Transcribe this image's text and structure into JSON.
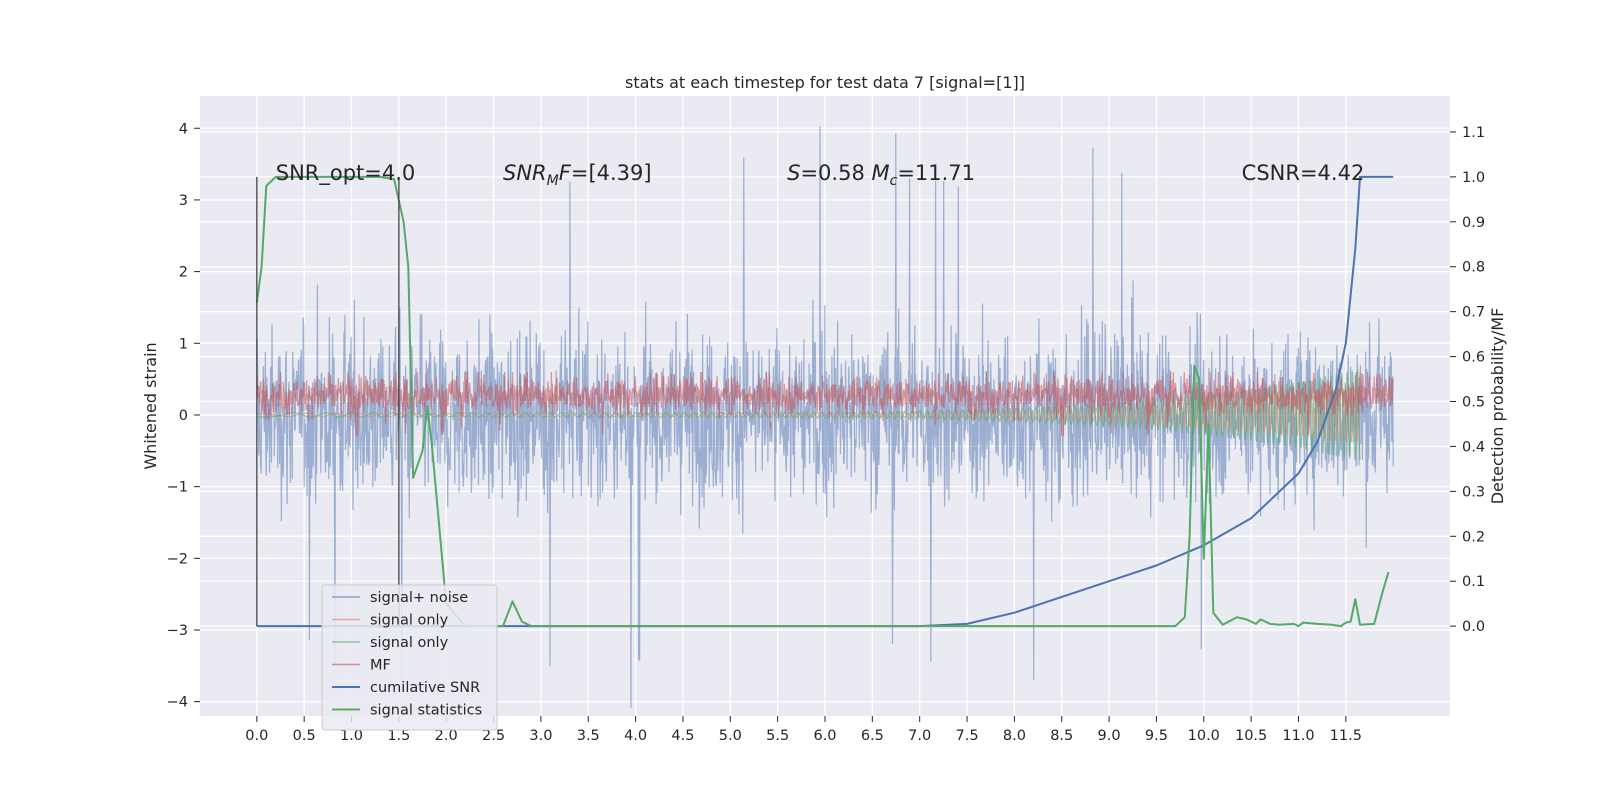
{
  "chart_data": {
    "type": "line",
    "title": "stats at each timestep for test data 7 [signal=[1]]",
    "xlabel": "",
    "ylabel": "Whitened strain",
    "ylabel_right": "Detection probability/MF",
    "xlim": [
      -0.6,
      12.6
    ],
    "ylim": [
      -4.2,
      4.45
    ],
    "ylim_right": [
      -0.2,
      1.18
    ],
    "x_ticks": [
      "0.0",
      "0.5",
      "1.0",
      "1.5",
      "2.0",
      "2.5",
      "3.0",
      "3.5",
      "4.0",
      "4.5",
      "5.0",
      "5.5",
      "6.0",
      "6.5",
      "7.0",
      "7.5",
      "8.0",
      "8.5",
      "9.0",
      "9.5",
      "10.0",
      "10.5",
      "11.0",
      "11.5"
    ],
    "y_ticks_left": [
      "4",
      "3",
      "2",
      "1",
      "0",
      "−1",
      "−2",
      "−3",
      "−4"
    ],
    "y_ticks_right": [
      "1.1",
      "1.0",
      "0.9",
      "0.8",
      "0.7",
      "0.6",
      "0.5",
      "0.4",
      "0.3",
      "0.2",
      "0.1",
      "0.0"
    ],
    "annotations": [
      {
        "text": "SNR_opt=4.0",
        "x": 0.2
      },
      {
        "text": "SNR_MF=[4.39]",
        "x": 2.6
      },
      {
        "text": "S=0.58   M_c=11.71",
        "x": 5.6
      },
      {
        "text": "CSNR=4.42",
        "x": 10.4
      }
    ],
    "vlines": [
      0.0,
      1.5
    ],
    "series": [
      {
        "name": "signal+ noise",
        "axis": "left",
        "color": "#4c72b0",
        "kind": "noise",
        "x_range": [
          0.0,
          12.0
        ],
        "envelope": {
          "typical": 1.1,
          "peak": 4.1,
          "offset": 0.0
        }
      },
      {
        "name": "signal only",
        "axis": "left",
        "color": "#dd8452",
        "kind": "chirp",
        "x_range": [
          0.0,
          11.65
        ],
        "amp_start": 0.02,
        "amp_end": 0.4
      },
      {
        "name": "signal only",
        "axis": "left",
        "color": "#55a868",
        "kind": "chirp",
        "x_range": [
          0.0,
          11.65
        ],
        "amp_start": 0.03,
        "amp_end": 0.65
      },
      {
        "name": "MF",
        "axis": "left",
        "color": "#c44e52",
        "kind": "noise",
        "x_range": [
          0.0,
          12.0
        ],
        "envelope": {
          "typical": 0.25,
          "peak": 0.6,
          "offset": 0.28
        }
      },
      {
        "name": "cumilative SNR",
        "axis": "right",
        "color": "#4c72b0",
        "x": [
          0.0,
          7.0,
          7.5,
          8.0,
          8.5,
          9.0,
          9.5,
          10.0,
          10.5,
          11.0,
          11.2,
          11.4,
          11.5,
          11.6,
          11.65,
          12.0
        ],
        "y": [
          0.0,
          0.0,
          0.005,
          0.03,
          0.065,
          0.1,
          0.135,
          0.18,
          0.24,
          0.34,
          0.41,
          0.53,
          0.63,
          0.84,
          1.0,
          1.0
        ]
      },
      {
        "name": "signal statistics",
        "axis": "right",
        "color": "#55a868",
        "x": [
          0.0,
          0.05,
          0.1,
          0.2,
          0.5,
          1.0,
          1.3,
          1.45,
          1.55,
          1.6,
          1.65,
          1.75,
          1.8,
          1.85,
          2.0,
          2.2,
          2.5,
          2.6,
          2.7,
          2.8,
          2.9,
          3.0,
          5.0,
          7.5,
          9.0,
          9.7,
          9.8,
          9.85,
          9.9,
          9.95,
          10.0,
          10.05,
          10.1,
          10.2,
          10.35,
          10.45,
          10.55,
          10.6,
          10.7,
          10.8,
          10.95,
          11.0,
          11.05,
          11.2,
          11.35,
          11.45,
          11.5,
          11.55,
          11.6,
          11.65,
          11.8,
          11.88,
          11.95
        ],
        "y": [
          0.72,
          0.8,
          0.98,
          1.0,
          1.0,
          1.0,
          1.0,
          0.995,
          0.9,
          0.8,
          0.33,
          0.39,
          0.49,
          0.4,
          0.05,
          0.0,
          0.0,
          0.0,
          0.055,
          0.01,
          0.0,
          0.0,
          0.0,
          0.0,
          0.0,
          0.0,
          0.02,
          0.2,
          0.58,
          0.55,
          0.15,
          0.45,
          0.03,
          0.003,
          0.02,
          0.015,
          0.005,
          0.015,
          0.005,
          0.003,
          0.005,
          0.0,
          0.008,
          0.005,
          0.003,
          0.0,
          0.008,
          0.01,
          0.06,
          0.003,
          0.005,
          0.07,
          0.12
        ]
      }
    ],
    "legend": {
      "placement": "lower-left"
    },
    "grid": true
  }
}
